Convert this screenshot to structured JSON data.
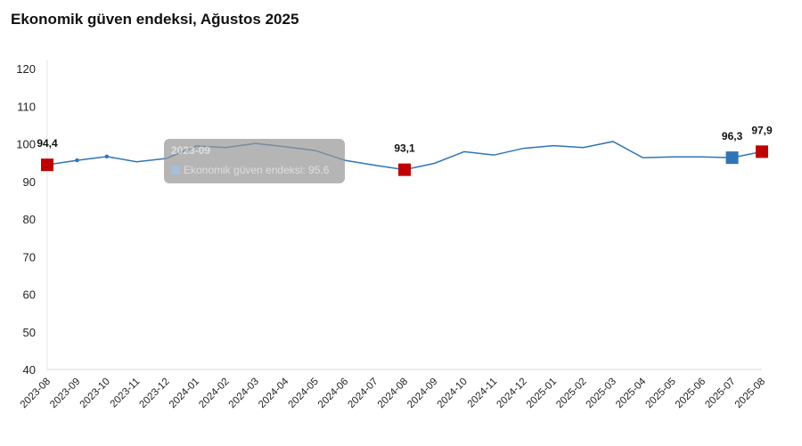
{
  "title": "Ekonomik güven endeksi, Ağustos 2025",
  "chart_data": {
    "type": "line",
    "title": "Ekonomik güven endeksi, Ağustos 2025",
    "xlabel": "",
    "ylabel": "",
    "ylim": [
      40,
      120
    ],
    "yticks": [
      40,
      50,
      60,
      70,
      80,
      90,
      100,
      110,
      120
    ],
    "grid": false,
    "categories": [
      "2023-08",
      "2023-09",
      "2023-10",
      "2023-11",
      "2023-12",
      "2024-01",
      "2024-02",
      "2024-03",
      "2024-04",
      "2024-05",
      "2024-06",
      "2024-07",
      "2024-08",
      "2024-09",
      "2024-10",
      "2024-11",
      "2024-12",
      "2025-01",
      "2025-02",
      "2025-03",
      "2025-04",
      "2025-05",
      "2025-06",
      "2025-07",
      "2025-08"
    ],
    "series": [
      {
        "name": "Ekonomik güven endeksi",
        "color": "#2e75b6",
        "values": [
          94.4,
          95.6,
          96.6,
          95.2,
          96.1,
          99.4,
          99.0,
          100.1,
          99.2,
          98.2,
          95.6,
          94.3,
          93.1,
          94.8,
          97.9,
          97.0,
          98.8,
          99.5,
          99.0,
          100.6,
          96.3,
          96.5,
          96.5,
          96.3,
          97.9
        ]
      }
    ],
    "highlights": [
      {
        "category": "2023-08",
        "label": "94,4",
        "color": "#c00000"
      },
      {
        "category": "2024-08",
        "label": "93,1",
        "color": "#c00000"
      },
      {
        "category": "2025-07",
        "label": "96,3",
        "color": "#2e75b6"
      },
      {
        "category": "2025-08",
        "label": "97,9",
        "color": "#c00000"
      }
    ],
    "tooltip": {
      "category": "2023-09",
      "text": "Ekonomik güven endeksi: 95.6"
    }
  }
}
